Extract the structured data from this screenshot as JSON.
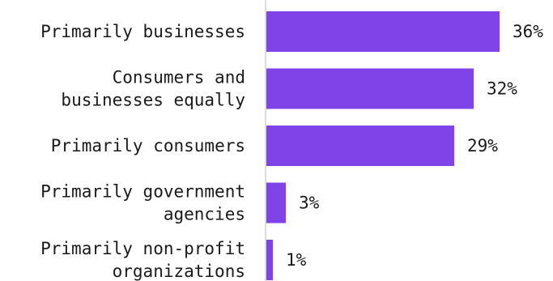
{
  "chart_data": {
    "type": "bar",
    "orientation": "horizontal",
    "categories": [
      [
        "Primarily businesses"
      ],
      [
        "Consumers and",
        "businesses equally"
      ],
      [
        "Primarily consumers"
      ],
      [
        "Primarily government",
        "agencies"
      ],
      [
        "Primarily non-profit",
        "organizations"
      ]
    ],
    "values": [
      36,
      32,
      29,
      3,
      1
    ],
    "value_labels": [
      "36%",
      "32%",
      "29%",
      "3%",
      "1%"
    ],
    "bar_color": "#7f43e8",
    "grid": false,
    "legend": "none"
  }
}
